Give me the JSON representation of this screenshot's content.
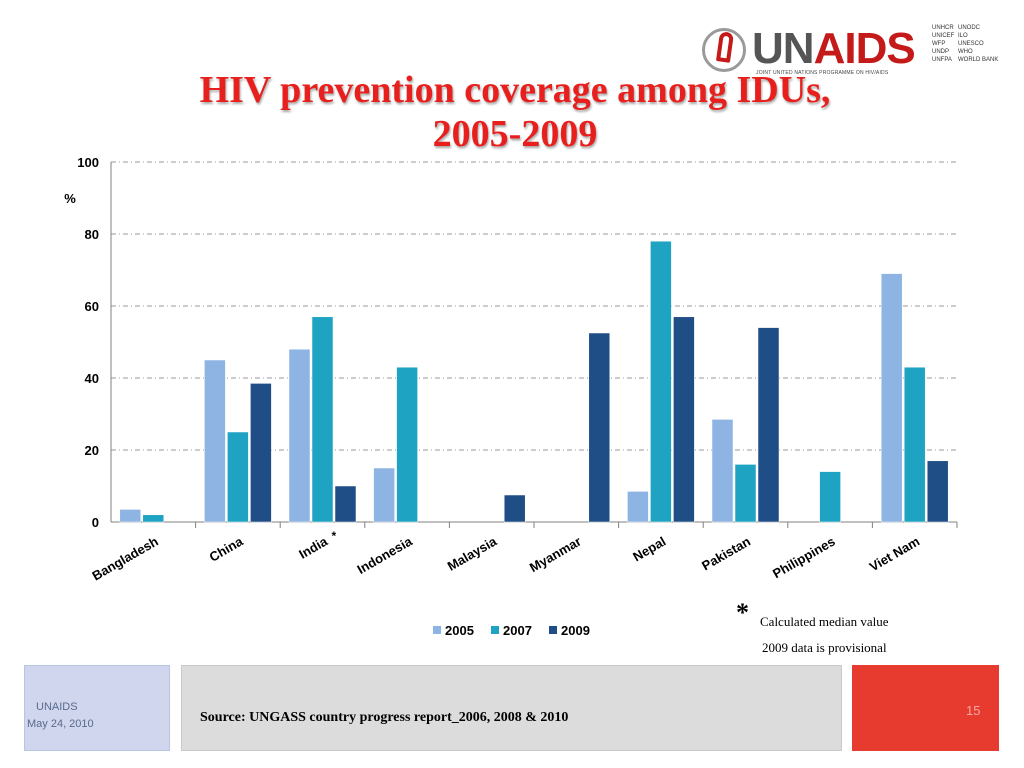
{
  "slide": {
    "title_line1": "HIV prevention coverage among  IDUs,",
    "title_line2": "2005-2009",
    "note_star": "*",
    "note_median": "Calculated median value",
    "note_provisional": "2009 data is provisional"
  },
  "logo": {
    "name_un": "UN",
    "name_aids": "AIDS",
    "tagline": "JOINT UNITED NATIONS PROGRAMME ON HIV/AIDS",
    "cosponsors_col1": [
      "UNHCR",
      "UNICEF",
      "WFP",
      "UNDP",
      "UNFPA"
    ],
    "cosponsors_col2": [
      "UNODC",
      "ILO",
      "UNESCO",
      "WHO",
      "WORLD BANK"
    ]
  },
  "footer": {
    "org": "UNAIDS",
    "date": "May 24, 2010",
    "source": "Source: UNGASS country progress report_2006, 2008 & 2010",
    "page_number": "15"
  },
  "chart_data": {
    "type": "bar",
    "ylabel": "%",
    "ylim": [
      0,
      100
    ],
    "yticks": [
      0,
      20,
      40,
      60,
      80,
      100
    ],
    "grid": true,
    "legend_position": "bottom",
    "categories": [
      "Bangladesh",
      "China",
      "India",
      "Indonesia",
      "Malaysia",
      "Myanmar",
      "Nepal",
      "Pakistan",
      "Philippines",
      "Viet Nam"
    ],
    "category_markers": [
      "",
      "",
      "*",
      "",
      "",
      "",
      "",
      "",
      "",
      ""
    ],
    "series": [
      {
        "name": "2005",
        "color": "#8db4e2",
        "values": [
          3.5,
          45,
          48,
          15,
          null,
          null,
          8.5,
          28.5,
          null,
          69
        ]
      },
      {
        "name": "2007",
        "color": "#1ea3c3",
        "values": [
          2,
          25,
          57,
          43,
          null,
          null,
          78,
          16,
          14,
          43
        ]
      },
      {
        "name": "2009",
        "color": "#1f4e87",
        "values": [
          null,
          38.5,
          10,
          null,
          7.5,
          52.5,
          57,
          54,
          null,
          17
        ]
      }
    ]
  }
}
